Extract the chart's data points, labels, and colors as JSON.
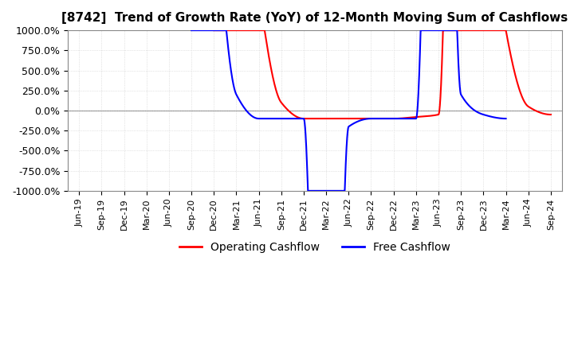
{
  "title": "[8742]  Trend of Growth Rate (YoY) of 12-Month Moving Sum of Cashflows",
  "ylim": [
    -1000,
    1000
  ],
  "yticks": [
    -1000,
    -750,
    -500,
    -250,
    0,
    250,
    500,
    750,
    1000
  ],
  "background_color": "#ffffff",
  "grid_color": "#cccccc",
  "operating_color": "#ff0000",
  "free_color": "#0000ff",
  "x_labels": [
    "Jun-19",
    "Sep-19",
    "Dec-19",
    "Mar-20",
    "Jun-20",
    "Sep-20",
    "Dec-20",
    "Mar-21",
    "Jun-21",
    "Sep-21",
    "Dec-21",
    "Mar-22",
    "Jun-22",
    "Sep-22",
    "Dec-22",
    "Mar-23",
    "Jun-23",
    "Sep-23",
    "Dec-23",
    "Mar-24",
    "Jun-24",
    "Sep-24"
  ],
  "op_x": [
    6,
    7,
    8,
    9,
    10,
    11,
    12,
    13,
    14,
    15,
    16,
    17,
    18,
    19,
    20,
    21
  ],
  "op_y": [
    10000,
    5000,
    1500,
    100,
    -100,
    -100,
    -100,
    -100,
    -100,
    -80,
    -50,
    10000,
    5000,
    1000,
    50,
    -50
  ],
  "fc_x": [
    5,
    6,
    7,
    8,
    9,
    10,
    11,
    12,
    13,
    14,
    15,
    16,
    17,
    18,
    19
  ],
  "fc_y": [
    10000,
    3000,
    200,
    -100,
    -100,
    -100,
    -10000,
    -200,
    -100,
    -100,
    -100,
    10000,
    200,
    -50,
    -100
  ]
}
